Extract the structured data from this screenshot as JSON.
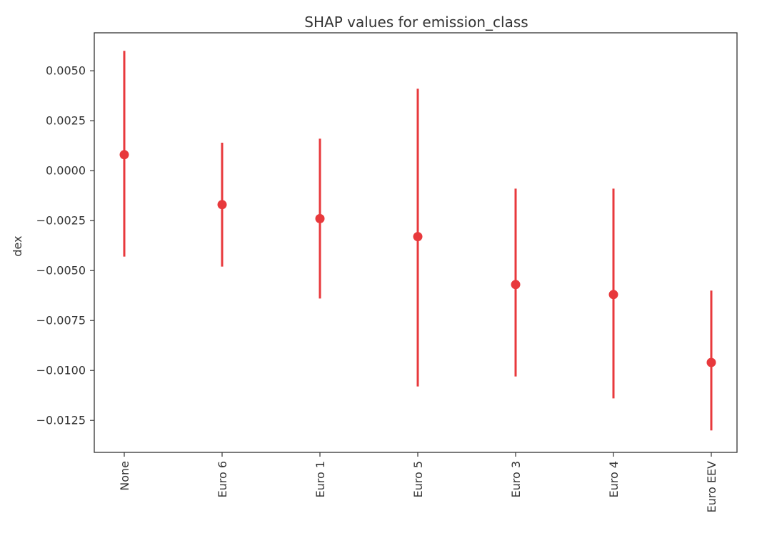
{
  "chart_data": {
    "type": "errorbar",
    "title": "SHAP values for emission_class",
    "xlabel": "",
    "ylabel": "dex",
    "categories": [
      "None",
      "Euro 6",
      "Euro 1",
      "Euro 5",
      "Euro 3",
      "Euro 4",
      "Euro EEV"
    ],
    "series": [
      {
        "values": [
          0.0008,
          -0.0017,
          -0.0024,
          -0.0033,
          -0.0057,
          -0.0062,
          -0.0096
        ],
        "lower": [
          -0.0043,
          -0.0048,
          -0.0064,
          -0.0108,
          -0.0103,
          -0.0114,
          -0.013
        ],
        "upper": [
          0.006,
          0.0014,
          0.0016,
          0.0041,
          -0.0009,
          -0.0009,
          -0.006
        ]
      }
    ],
    "yticks": [
      "0.0050",
      "0.0025",
      "0.0000",
      "−0.0025",
      "−0.0050",
      "−0.0075",
      "−0.0100",
      "−0.0125"
    ],
    "ytick_values": [
      0.005,
      0.0025,
      0.0,
      -0.0025,
      -0.005,
      -0.0075,
      -0.01,
      -0.0125
    ],
    "ylim": [
      -0.0141,
      0.0069
    ],
    "grid": false,
    "colors": {
      "marker": "#e8393c",
      "axis": "#333333"
    }
  }
}
